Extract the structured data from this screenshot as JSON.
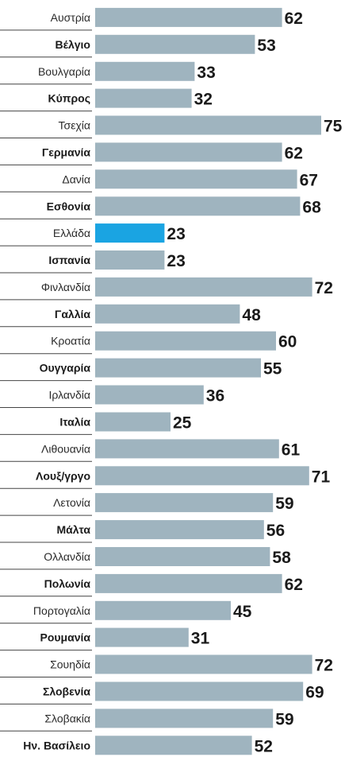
{
  "chart_data": {
    "type": "bar",
    "orientation": "horizontal",
    "categories": [
      "Αυστρία",
      "Βέλγιο",
      "Βουλγαρία",
      "Κύπρος",
      "Τσεχία",
      "Γερμανία",
      "Δανία",
      "Εσθονία",
      "Ελλάδα",
      "Ισπανία",
      "Φινλανδία",
      "Γαλλία",
      "Κροατία",
      "Ουγγαρία",
      "Ιρλανδία",
      "Ιταλία",
      "Λιθουανία",
      "Λουξ/γργο",
      "Λετονία",
      "Μάλτα",
      "Ολλανδία",
      "Πολωνία",
      "Πορτογαλία",
      "Ρουμανία",
      "Σουηδία",
      "Σλοβενία",
      "Σλοβακία",
      "Ην. Βασίλειο"
    ],
    "values": [
      62,
      53,
      33,
      32,
      75,
      62,
      67,
      68,
      23,
      23,
      72,
      48,
      60,
      55,
      36,
      25,
      61,
      71,
      59,
      56,
      58,
      62,
      45,
      31,
      72,
      69,
      59,
      52
    ],
    "bold_labels": [
      false,
      true,
      false,
      true,
      false,
      true,
      false,
      true,
      false,
      true,
      false,
      true,
      false,
      true,
      false,
      true,
      false,
      true,
      false,
      true,
      false,
      true,
      false,
      true,
      false,
      true,
      false,
      true
    ],
    "highlight_category": "Ελλάδα",
    "colors": {
      "bar": "#9fb4bf",
      "highlight": "#1aa4e2",
      "text": "#1a1a1a"
    },
    "xlim": [
      0,
      75
    ],
    "title": "",
    "xlabel": "",
    "ylabel": ""
  }
}
